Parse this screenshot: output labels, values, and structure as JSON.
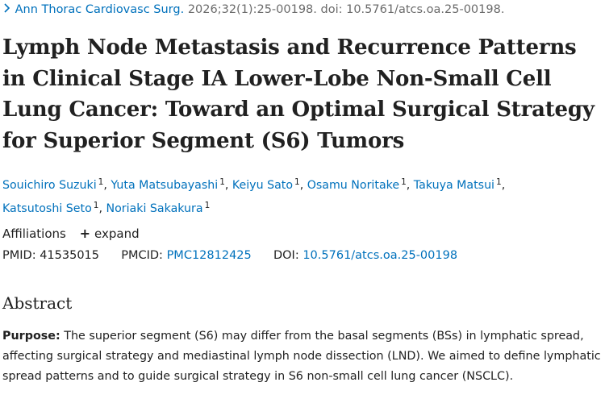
{
  "citation": {
    "chevron_icon": "chevron-right-icon",
    "journal": "Ann Thorac Cardiovasc Surg.",
    "details": "2026;32(1):25-00198. doi: 10.5761/atcs.oa.25-00198."
  },
  "article": {
    "title": "Lymph Node Metastasis and Recurrence Patterns in Clinical Stage IA Lower-Lobe Non-Small Cell Lung Cancer: Toward an Optimal Surgical Strategy for Superior Segment (S6) Tumors"
  },
  "authors": [
    {
      "name": "Souichiro Suzuki",
      "sup": "1"
    },
    {
      "name": "Yuta Matsubayashi",
      "sup": "1"
    },
    {
      "name": "Keiyu Sato",
      "sup": "1"
    },
    {
      "name": "Osamu Noritake",
      "sup": "1"
    },
    {
      "name": "Takuya Matsui",
      "sup": "1"
    },
    {
      "name": "Katsutoshi Seto",
      "sup": "1"
    },
    {
      "name": "Noriaki Sakakura",
      "sup": "1"
    }
  ],
  "affiliations": {
    "label": "Affiliations",
    "expand_label": "expand"
  },
  "identifiers": {
    "pmid_label": "PMID:",
    "pmid": "41535015",
    "pmcid_label": "PMCID:",
    "pmcid": "PMC12812425",
    "doi_label": "DOI:",
    "doi": "10.5761/atcs.oa.25-00198"
  },
  "abstract": {
    "heading": "Abstract",
    "lead": "Purpose:",
    "text": "The superior segment (S6) may differ from the basal segments (BSs) in lymphatic spread, affecting surgical strategy and mediastinal lymph node dissection (LND). We aimed to define lymphatic spread patterns and to guide surgical strategy in S6 non-small cell lung cancer (NSCLC)."
  },
  "colors": {
    "link": "#0071bc",
    "text": "#212121",
    "muted": "#6b6b6b"
  }
}
